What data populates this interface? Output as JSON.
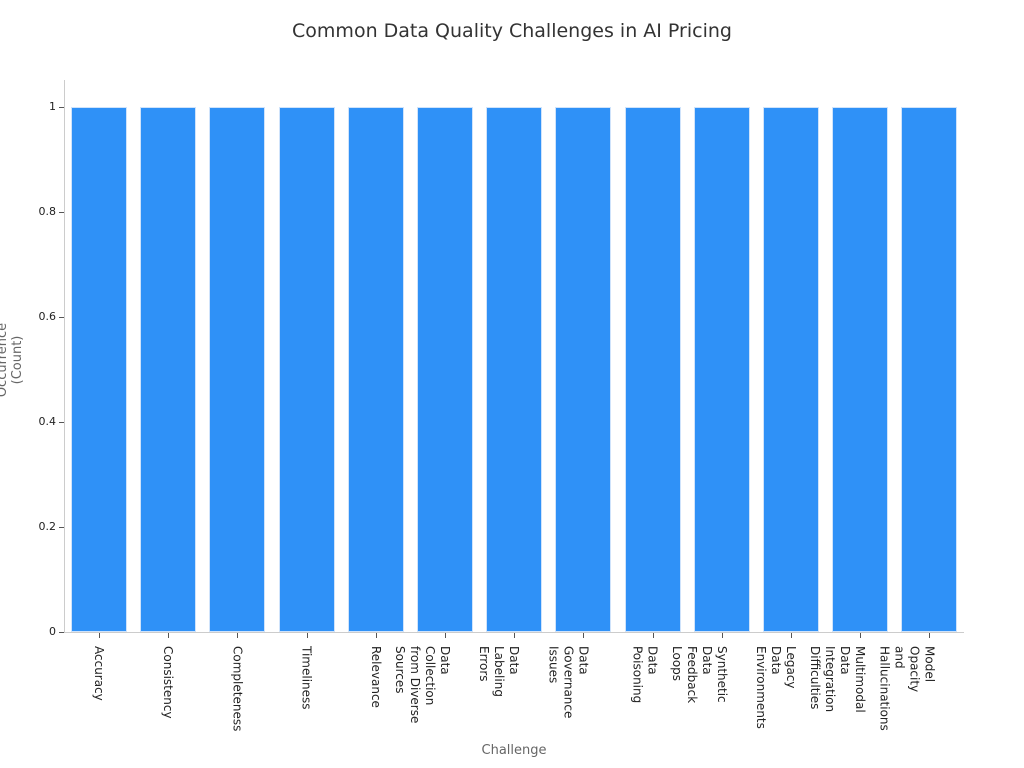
{
  "chart_data": {
    "type": "bar",
    "title": "Common Data Quality Challenges in AI Pricing",
    "xlabel": "Challenge",
    "ylabel": "Occurrence (Count)",
    "categories": [
      "Accuracy",
      "Consistency",
      "Completeness",
      "Timeliness",
      "Relevance",
      "Data Collection from Diverse Sources",
      "Data Labeling Errors",
      "Data Governance Issues",
      "Data Poisoning",
      "Synthetic Data Feedback Loops",
      "Legacy Data Environments",
      "Multimodal Data Integration Difficulties",
      "Model Opacity and Hallucinations"
    ],
    "category_lines": [
      [
        "Accuracy"
      ],
      [
        "Consistency"
      ],
      [
        "Completeness"
      ],
      [
        "Timeliness"
      ],
      [
        "Relevance"
      ],
      [
        "Data",
        "Collection",
        "from Diverse",
        "Sources"
      ],
      [
        "Data",
        "Labeling",
        "Errors"
      ],
      [
        "Data",
        "Governance",
        "Issues"
      ],
      [
        "Data",
        "Poisoning"
      ],
      [
        "Synthetic",
        "Data",
        "Feedback",
        "Loops"
      ],
      [
        "Legacy",
        "Data",
        "Environments"
      ],
      [
        "Multimodal",
        "Data",
        "Integration",
        "Difficulties"
      ],
      [
        "Model",
        "Opacity",
        "and",
        "Hallucinations"
      ]
    ],
    "values": [
      1,
      1,
      1,
      1,
      1,
      1,
      1,
      1,
      1,
      1,
      1,
      1,
      1
    ],
    "ylim": [
      0,
      1
    ],
    "yticks": [
      "0",
      "0.2",
      "0.4",
      "0.6",
      "0.8",
      "1"
    ],
    "grid": false,
    "legend": null,
    "bar_color": "#2f91f7"
  }
}
